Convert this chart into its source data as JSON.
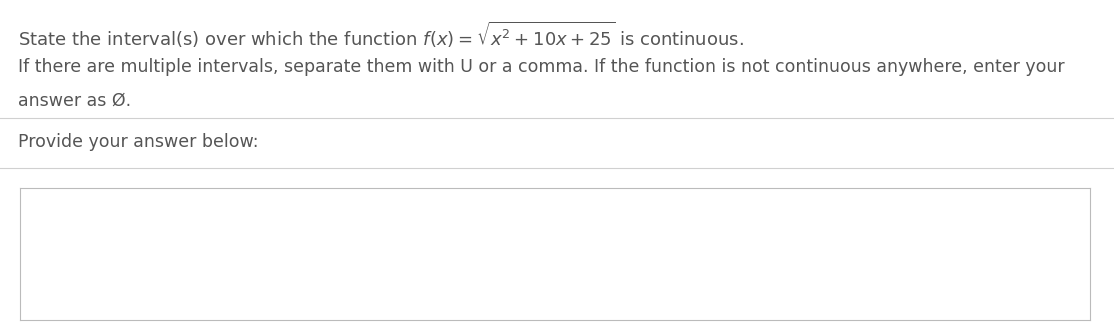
{
  "background_color": "#ffffff",
  "line1": "State the interval(s) over which the function $f(x) = \\sqrt{x^2 + 10x + 25}$ is continuous.",
  "line2a": "If there are multiple intervals, separate them with U or a comma. If the function is not continuous anywhere, enter your",
  "line2b": "answer as Ø.",
  "line3": "Provide your answer below:",
  "text_color": "#555555",
  "separator_color": "#d0d0d0",
  "font_size_line1": 13.0,
  "font_size_body": 12.5,
  "box_color": "#ffffff",
  "box_border_color": "#bbbbbb"
}
